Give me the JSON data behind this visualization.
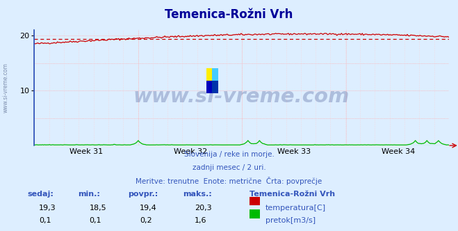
{
  "title": "Temenica-Rožni Vrh",
  "background_color": "#ddeeff",
  "plot_bg_color": "#ddeeff",
  "grid_color_h": "#ffaaaa",
  "grid_color_v": "#ffcccc",
  "xlabel_weeks": [
    "Week 31",
    "Week 32",
    "Week 33",
    "Week 34"
  ],
  "ylim": [
    0,
    21
  ],
  "yticks": [
    10,
    20
  ],
  "temp_min": 18.5,
  "temp_max": 20.3,
  "temp_avg": 19.4,
  "temp_current": 19.3,
  "flow_min": 0.1,
  "flow_max": 1.6,
  "flow_avg": 0.2,
  "flow_current": 0.1,
  "temp_color": "#cc0000",
  "flow_color": "#00bb00",
  "avg_line_color": "#cc0000",
  "subtitle1": "Slovenija / reke in morje.",
  "subtitle2": "zadnji mesec / 2 uri.",
  "subtitle3": "Meritve: trenutne  Enote: metrične  Črta: povprečje",
  "label_color": "#3355bb",
  "title_color": "#000099",
  "station_name": "Temenica-Rožni Vrh",
  "n_points": 360,
  "watermark": "www.si-vreme.com",
  "watermark_color": "#334488",
  "left_label": "www.si-vreme.com",
  "logo_colors": [
    "#ffee00",
    "#00ccff",
    "#0000bb"
  ],
  "axis_color": "#3355bb",
  "tick_color": "#3355bb"
}
